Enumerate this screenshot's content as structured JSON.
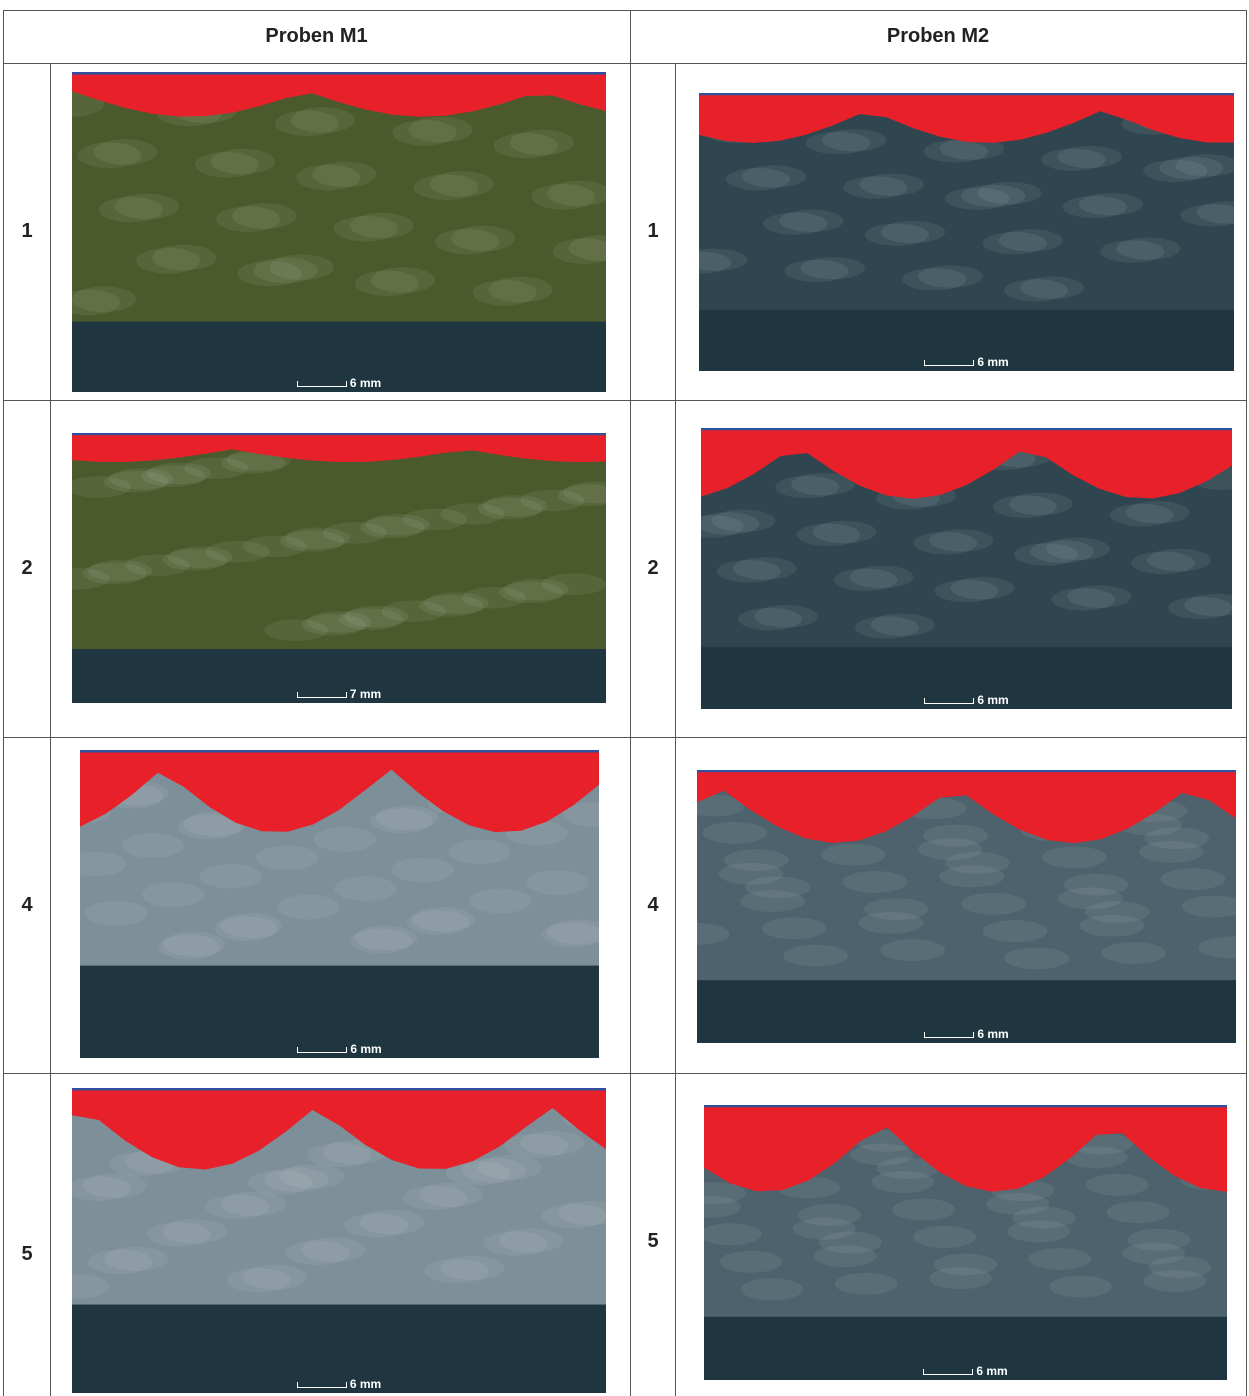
{
  "table": {
    "headers": [
      "Proben M1",
      "Proben M2"
    ],
    "rows": [
      [
        {
          "label": "1",
          "scale": "6 mm"
        },
        {
          "label": "1",
          "scale": "6 mm"
        }
      ],
      [
        {
          "label": "2",
          "scale": "7 mm"
        },
        {
          "label": "2",
          "scale": "6 mm"
        }
      ],
      [
        {
          "label": "4",
          "scale": "6 mm"
        },
        {
          "label": "4",
          "scale": "6 mm"
        }
      ],
      [
        {
          "label": "5",
          "scale": "6 mm"
        },
        {
          "label": "5",
          "scale": "6 mm"
        }
      ]
    ]
  }
}
